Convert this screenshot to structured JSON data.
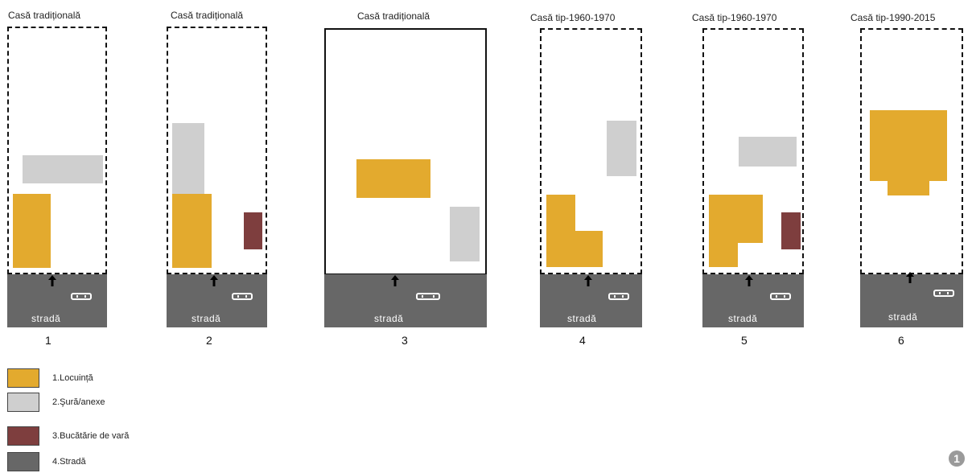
{
  "plans": [
    {
      "title": "Casă tradițională",
      "number": "1",
      "street": "stradă"
    },
    {
      "title": "Casă tradițională",
      "number": "2",
      "street": "stradă"
    },
    {
      "title": "Casă tradițională",
      "number": "3",
      "street": "stradă"
    },
    {
      "title": "Casă tip-1960-1970",
      "number": "4",
      "street": "stradă"
    },
    {
      "title": "Casă tip-1960-1970",
      "number": "5",
      "street": "stradă"
    },
    {
      "title": "Casă tip-1990-2015",
      "number": "6",
      "street": "stradă"
    }
  ],
  "legend": [
    {
      "label": "1.Locuință",
      "color": "#e3aa2e"
    },
    {
      "label": "2.Şură/anexe",
      "color": "#cfcfcf"
    },
    {
      "label": "3.Bucătărie de vară",
      "color": "#7e3e3e"
    },
    {
      "label": "4.Stradă",
      "color": "#676767"
    }
  ],
  "badge": "1"
}
